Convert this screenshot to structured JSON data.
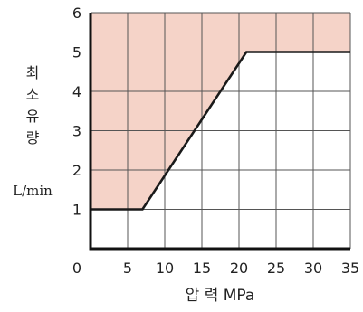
{
  "chart_data": {
    "type": "line",
    "x": [
      0,
      7,
      21,
      35
    ],
    "series": [
      {
        "values": [
          1,
          1,
          5,
          5
        ]
      }
    ],
    "xlim": [
      0,
      35
    ],
    "ylim": [
      0,
      6
    ],
    "xticks": [
      0,
      5,
      10,
      15,
      20,
      25,
      30,
      35
    ],
    "yticks": [
      1,
      2,
      3,
      4,
      5,
      6
    ],
    "xlabel": "압 력  MPa",
    "ylabel": "최소유량",
    "ylabel_unit": "L/min",
    "grid": true,
    "shaded_region": "above-line",
    "colors": {
      "shade": "#f5d3c8",
      "grid": "#555555",
      "line": "#1a1a1a",
      "axis": "#111111"
    }
  }
}
